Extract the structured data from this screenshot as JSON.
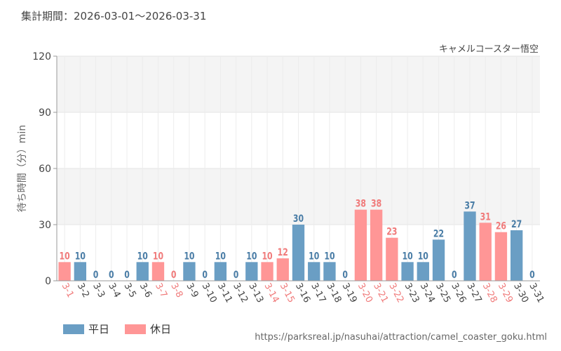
{
  "header": {
    "period_label": "集計期間：",
    "period_range": "2026-03-01〜2026-03-31"
  },
  "legend": {
    "weekday": "平日",
    "holiday": "休日"
  },
  "source_url": "https://parksreal.jp/nasuhai/attraction/camel_coaster_goku.html",
  "colors": {
    "weekday": "#6a9ec4",
    "holiday": "#ff9696",
    "weekday_label": "#4a7da6",
    "holiday_label": "#f07a7a",
    "band": "#f4f4f4",
    "grid": "#e4e4e4"
  },
  "chart_data": {
    "type": "bar",
    "title": "キャメルコースター悟空",
    "ylabel": "待ち時間（分）min",
    "ylim": [
      0,
      120
    ],
    "yticks": [
      0,
      30,
      60,
      90,
      120
    ],
    "categories": [
      "3-1",
      "3-2",
      "3-3",
      "3-4",
      "3-5",
      "3-6",
      "3-7",
      "3-8",
      "3-9",
      "3-10",
      "3-11",
      "3-12",
      "3-13",
      "3-14",
      "3-15",
      "3-16",
      "3-17",
      "3-18",
      "3-19",
      "3-20",
      "3-21",
      "3-22",
      "3-23",
      "3-24",
      "3-25",
      "3-26",
      "3-27",
      "3-28",
      "3-29",
      "3-30",
      "3-31"
    ],
    "values": [
      10,
      10,
      0,
      0,
      0,
      10,
      10,
      0,
      10,
      0,
      10,
      0,
      10,
      10,
      12,
      30,
      10,
      10,
      0,
      38,
      38,
      23,
      10,
      10,
      22,
      0,
      37,
      31,
      26,
      27,
      0
    ],
    "day_type": [
      "holiday",
      "weekday",
      "weekday",
      "weekday",
      "weekday",
      "weekday",
      "holiday",
      "holiday",
      "weekday",
      "weekday",
      "weekday",
      "weekday",
      "weekday",
      "holiday",
      "holiday",
      "weekday",
      "weekday",
      "weekday",
      "weekday",
      "holiday",
      "holiday",
      "holiday",
      "weekday",
      "weekday",
      "weekday",
      "weekday",
      "weekday",
      "holiday",
      "holiday",
      "weekday",
      "weekday"
    ],
    "grid": true,
    "legend_position": "bottom-left"
  }
}
